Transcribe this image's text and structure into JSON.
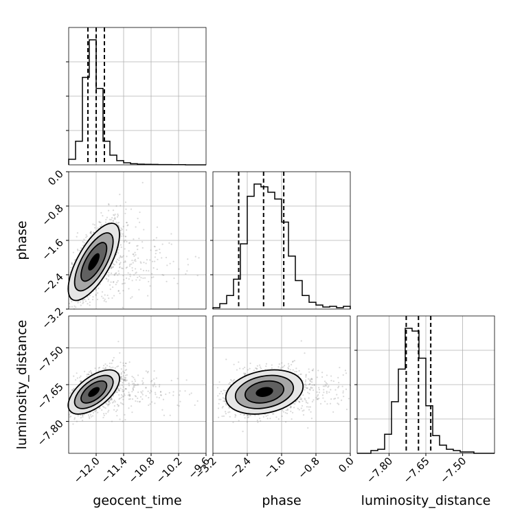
{
  "chart_data": {
    "type": "corner",
    "parameters": [
      {
        "name": "geocent_time",
        "range": [
          -12.6,
          -9.6
        ],
        "ticks": [
          -12.0,
          -11.4,
          -10.8,
          -10.2,
          -9.6
        ],
        "tick_labels": [
          "−12.0",
          "−11.4",
          "−10.8",
          "−10.2",
          "−9.6"
        ],
        "quantiles": [
          -12.18,
          -12.0,
          -11.82
        ]
      },
      {
        "name": "phase",
        "range": [
          -3.2,
          0.0
        ],
        "ticks": [
          -3.2,
          -2.4,
          -1.6,
          -0.8,
          0.0
        ],
        "tick_labels": [
          "−3.2",
          "−2.4",
          "−1.6",
          "−0.8",
          "0.0"
        ],
        "quantiles": [
          -2.6,
          -2.02,
          -1.55
        ]
      },
      {
        "name": "luminosity_distance",
        "range": [
          -7.93,
          -7.37
        ],
        "ticks": [
          -7.8,
          -7.65,
          -7.5
        ],
        "tick_labels": [
          "−7.80",
          "−7.65",
          "−7.50"
        ],
        "quantiles": [
          -7.73,
          -7.68,
          -7.63
        ]
      }
    ],
    "histograms": [
      {
        "param": "geocent_time",
        "bin_edges": [
          -12.6,
          -12.45,
          -12.3,
          -12.15,
          -12.0,
          -11.85,
          -11.7,
          -11.55,
          -11.4,
          -11.25,
          -11.1,
          -10.95,
          -10.8,
          -10.65,
          -10.5,
          -10.35,
          -10.2,
          -10.05,
          -9.9,
          -9.75,
          -9.6
        ],
        "counts": [
          0.04,
          0.17,
          0.63,
          0.9,
          0.55,
          0.17,
          0.07,
          0.03,
          0.015,
          0.008,
          0.005,
          0.004,
          0.003,
          0.002,
          0.002,
          0.001,
          0.001,
          0.0,
          0.0,
          0.0
        ]
      },
      {
        "param": "phase",
        "bin_edges": [
          -3.2,
          -3.04,
          -2.88,
          -2.72,
          -2.56,
          -2.4,
          -2.24,
          -2.08,
          -1.92,
          -1.76,
          -1.6,
          -1.44,
          -1.28,
          -1.12,
          -0.96,
          -0.8,
          -0.64,
          -0.48,
          -0.32,
          -0.16,
          0.0
        ],
        "counts": [
          0.01,
          0.04,
          0.1,
          0.22,
          0.48,
          0.83,
          0.92,
          0.9,
          0.86,
          0.81,
          0.64,
          0.39,
          0.21,
          0.1,
          0.05,
          0.03,
          0.015,
          0.02,
          0.01,
          0.02
        ]
      },
      {
        "param": "luminosity_distance",
        "bin_edges": [
          -7.93,
          -7.902,
          -7.874,
          -7.846,
          -7.818,
          -7.79,
          -7.762,
          -7.734,
          -7.706,
          -7.678,
          -7.65,
          -7.622,
          -7.594,
          -7.566,
          -7.538,
          -7.51,
          -7.482,
          -7.454,
          -7.426,
          -7.398,
          -7.37
        ],
        "counts": [
          0.0,
          0.0,
          0.02,
          0.03,
          0.14,
          0.38,
          0.62,
          0.92,
          0.9,
          0.7,
          0.35,
          0.13,
          0.06,
          0.03,
          0.02,
          0.01,
          0.01,
          0.0,
          0.0,
          0.0
        ]
      }
    ],
    "pair_panels": [
      {
        "x": "geocent_time",
        "y": "phase",
        "mean": [
          -12.05,
          -2.1
        ],
        "sd": [
          0.28,
          0.45
        ],
        "corr": 0.7
      },
      {
        "x": "geocent_time",
        "y": "luminosity_distance",
        "mean": [
          -12.05,
          -7.68
        ],
        "sd": [
          0.28,
          0.045
        ],
        "corr": 0.6
      },
      {
        "x": "phase",
        "y": "luminosity_distance",
        "mean": [
          -2.0,
          -7.68
        ],
        "sd": [
          0.45,
          0.045
        ],
        "corr": 0.25
      }
    ],
    "grid": true,
    "colors": {
      "points": "#777777",
      "contour": "#000000",
      "fill_light": "#e6e6e6",
      "fill_mid": "#a6a6a6",
      "fill_dark": "#5a5a5a",
      "peak": "#000000",
      "grid": "#b0b0b0"
    }
  }
}
